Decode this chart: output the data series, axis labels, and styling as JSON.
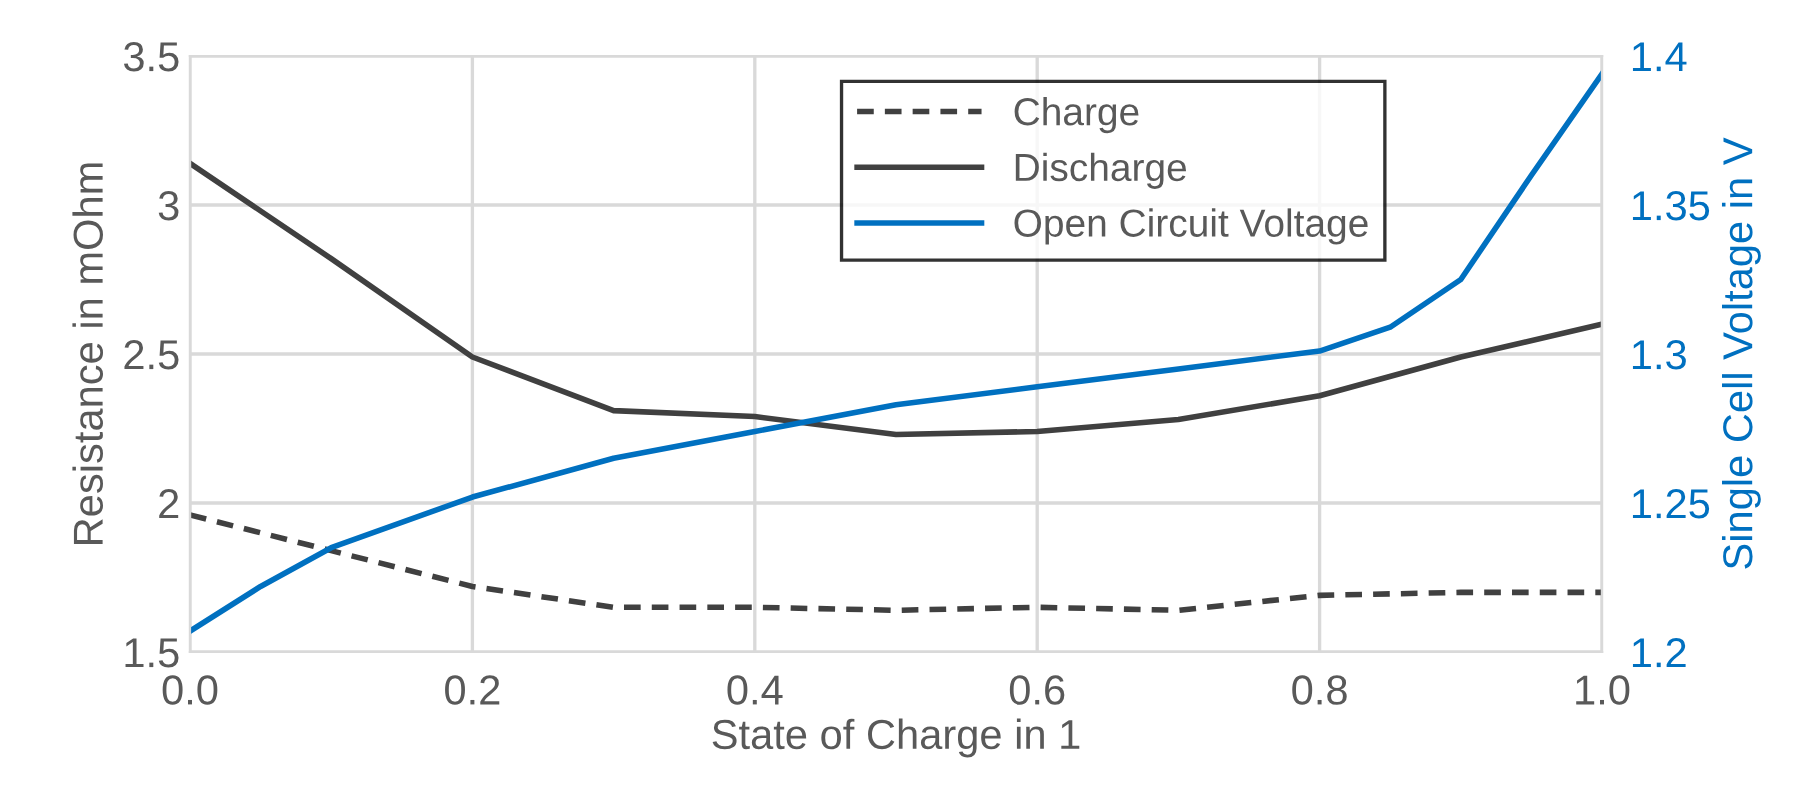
{
  "chart_data": {
    "type": "line",
    "xlabel": "State of Charge in 1",
    "ylabel": "Resistance in mOhm",
    "y2label": "Single Cell Voltage in V",
    "xlim": [
      0,
      1
    ],
    "xticks": [
      {
        "value": 0,
        "label": "0.0"
      },
      0.2,
      0.4,
      0.6,
      0.8,
      {
        "value": 1,
        "label": "1.0"
      }
    ],
    "ylim": [
      1.5,
      3.5
    ],
    "yticks": [
      1.5,
      2,
      2.5,
      3,
      3.5
    ],
    "y2lim": [
      1.2,
      1.4
    ],
    "y2ticks": [
      1.2,
      1.25,
      1.3,
      1.35,
      1.4
    ],
    "grid": true,
    "legend": "top right",
    "series": [
      {
        "name": "Charge",
        "color": "#404040",
        "line_style": "dashed",
        "x": [
          0,
          0.1,
          0.2,
          0.3,
          0.4,
          0.5,
          0.6,
          0.7,
          0.8,
          0.9,
          1.0
        ],
        "values": [
          1.96,
          1.84,
          1.72,
          1.65,
          1.65,
          1.64,
          1.65,
          1.64,
          1.69,
          1.7,
          1.7
        ]
      },
      {
        "name": "Discharge",
        "color": "#404040",
        "line_style": "solid",
        "x": [
          0,
          0.1,
          0.2,
          0.3,
          0.4,
          0.5,
          0.6,
          0.7,
          0.8,
          0.9,
          1.0
        ],
        "values": [
          3.14,
          2.82,
          2.49,
          2.31,
          2.29,
          2.23,
          2.24,
          2.28,
          2.36,
          2.49,
          2.6
        ]
      },
      {
        "name": "Open Circuit Voltage",
        "color": "#0070c0",
        "line_style": "solid",
        "axis": "y2",
        "x": [
          0,
          0.05,
          0.1,
          0.2,
          0.3,
          0.4,
          0.5,
          0.6,
          0.7,
          0.8,
          0.85,
          0.9,
          0.95,
          1.0
        ],
        "values": [
          1.207,
          1.222,
          1.235,
          1.252,
          1.265,
          1.274,
          1.283,
          1.289,
          1.295,
          1.301,
          1.309,
          1.325,
          1.36,
          1.394
        ]
      }
    ]
  }
}
